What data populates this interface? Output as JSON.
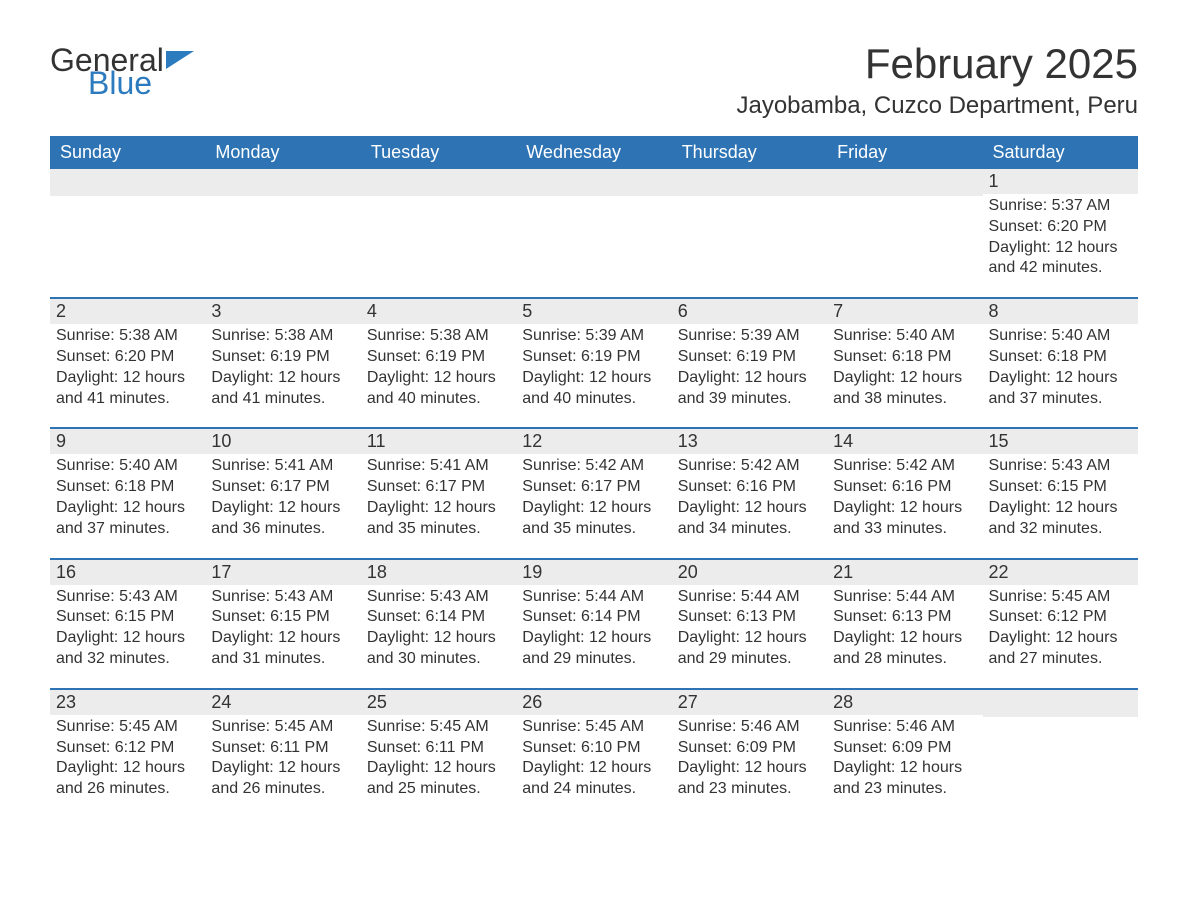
{
  "logo": {
    "word1": "General",
    "word2": "Blue"
  },
  "title": "February 2025",
  "location": "Jayobamba, Cuzco Department, Peru",
  "weekday_labels": [
    "Sunday",
    "Monday",
    "Tuesday",
    "Wednesday",
    "Thursday",
    "Friday",
    "Saturday"
  ],
  "colors": {
    "header_bg": "#2e74b5",
    "header_text": "#ffffff",
    "daynum_bg": "#ececec",
    "week_border": "#2e74b5",
    "text": "#333333",
    "logo_blue": "#2c7bbf",
    "background": "#ffffff"
  },
  "layout": {
    "columns": 7,
    "rows": 5,
    "month_title_fontsize": 42,
    "location_fontsize": 24,
    "header_fontsize": 18,
    "daynum_fontsize": 18,
    "body_fontsize": 16
  },
  "weeks": [
    [
      null,
      null,
      null,
      null,
      null,
      null,
      {
        "day": "1",
        "sunrise": "5:37 AM",
        "sunset": "6:20 PM",
        "daylight": "12 hours and 42 minutes."
      }
    ],
    [
      {
        "day": "2",
        "sunrise": "5:38 AM",
        "sunset": "6:20 PM",
        "daylight": "12 hours and 41 minutes."
      },
      {
        "day": "3",
        "sunrise": "5:38 AM",
        "sunset": "6:19 PM",
        "daylight": "12 hours and 41 minutes."
      },
      {
        "day": "4",
        "sunrise": "5:38 AM",
        "sunset": "6:19 PM",
        "daylight": "12 hours and 40 minutes."
      },
      {
        "day": "5",
        "sunrise": "5:39 AM",
        "sunset": "6:19 PM",
        "daylight": "12 hours and 40 minutes."
      },
      {
        "day": "6",
        "sunrise": "5:39 AM",
        "sunset": "6:19 PM",
        "daylight": "12 hours and 39 minutes."
      },
      {
        "day": "7",
        "sunrise": "5:40 AM",
        "sunset": "6:18 PM",
        "daylight": "12 hours and 38 minutes."
      },
      {
        "day": "8",
        "sunrise": "5:40 AM",
        "sunset": "6:18 PM",
        "daylight": "12 hours and 37 minutes."
      }
    ],
    [
      {
        "day": "9",
        "sunrise": "5:40 AM",
        "sunset": "6:18 PM",
        "daylight": "12 hours and 37 minutes."
      },
      {
        "day": "10",
        "sunrise": "5:41 AM",
        "sunset": "6:17 PM",
        "daylight": "12 hours and 36 minutes."
      },
      {
        "day": "11",
        "sunrise": "5:41 AM",
        "sunset": "6:17 PM",
        "daylight": "12 hours and 35 minutes."
      },
      {
        "day": "12",
        "sunrise": "5:42 AM",
        "sunset": "6:17 PM",
        "daylight": "12 hours and 35 minutes."
      },
      {
        "day": "13",
        "sunrise": "5:42 AM",
        "sunset": "6:16 PM",
        "daylight": "12 hours and 34 minutes."
      },
      {
        "day": "14",
        "sunrise": "5:42 AM",
        "sunset": "6:16 PM",
        "daylight": "12 hours and 33 minutes."
      },
      {
        "day": "15",
        "sunrise": "5:43 AM",
        "sunset": "6:15 PM",
        "daylight": "12 hours and 32 minutes."
      }
    ],
    [
      {
        "day": "16",
        "sunrise": "5:43 AM",
        "sunset": "6:15 PM",
        "daylight": "12 hours and 32 minutes."
      },
      {
        "day": "17",
        "sunrise": "5:43 AM",
        "sunset": "6:15 PM",
        "daylight": "12 hours and 31 minutes."
      },
      {
        "day": "18",
        "sunrise": "5:43 AM",
        "sunset": "6:14 PM",
        "daylight": "12 hours and 30 minutes."
      },
      {
        "day": "19",
        "sunrise": "5:44 AM",
        "sunset": "6:14 PM",
        "daylight": "12 hours and 29 minutes."
      },
      {
        "day": "20",
        "sunrise": "5:44 AM",
        "sunset": "6:13 PM",
        "daylight": "12 hours and 29 minutes."
      },
      {
        "day": "21",
        "sunrise": "5:44 AM",
        "sunset": "6:13 PM",
        "daylight": "12 hours and 28 minutes."
      },
      {
        "day": "22",
        "sunrise": "5:45 AM",
        "sunset": "6:12 PM",
        "daylight": "12 hours and 27 minutes."
      }
    ],
    [
      {
        "day": "23",
        "sunrise": "5:45 AM",
        "sunset": "6:12 PM",
        "daylight": "12 hours and 26 minutes."
      },
      {
        "day": "24",
        "sunrise": "5:45 AM",
        "sunset": "6:11 PM",
        "daylight": "12 hours and 26 minutes."
      },
      {
        "day": "25",
        "sunrise": "5:45 AM",
        "sunset": "6:11 PM",
        "daylight": "12 hours and 25 minutes."
      },
      {
        "day": "26",
        "sunrise": "5:45 AM",
        "sunset": "6:10 PM",
        "daylight": "12 hours and 24 minutes."
      },
      {
        "day": "27",
        "sunrise": "5:46 AM",
        "sunset": "6:09 PM",
        "daylight": "12 hours and 23 minutes."
      },
      {
        "day": "28",
        "sunrise": "5:46 AM",
        "sunset": "6:09 PM",
        "daylight": "12 hours and 23 minutes."
      },
      null
    ]
  ],
  "labels": {
    "sunrise": "Sunrise:",
    "sunset": "Sunset:",
    "daylight": "Daylight:"
  }
}
